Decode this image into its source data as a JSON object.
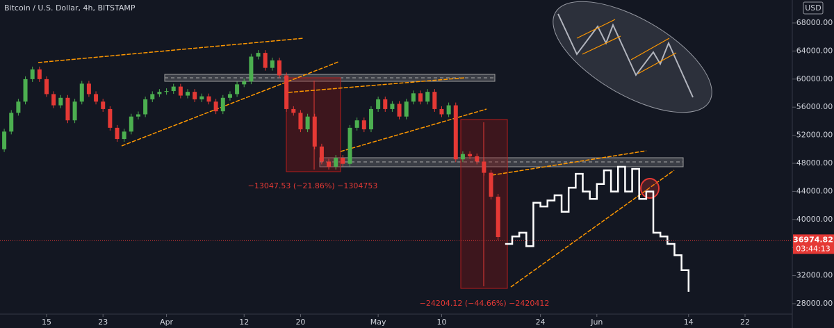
{
  "chart_data": {
    "type": "candlestick",
    "title": "Bitcoin / U.S. Dollar, 4h, BITSTAMP",
    "currency": "USD",
    "up_color": "#4caf50",
    "down_color": "#e53935",
    "x": [
      9,
      10,
      11,
      12,
      13,
      14,
      15,
      16,
      17,
      18,
      19,
      20,
      21,
      22,
      23,
      24,
      25,
      26,
      27,
      28,
      29,
      30,
      31,
      32,
      33,
      34,
      35,
      36,
      37,
      38,
      39,
      40,
      41,
      42,
      43,
      44,
      45,
      46,
      47,
      48,
      49,
      50,
      51,
      52,
      53,
      54,
      55,
      56,
      57,
      58,
      59,
      60,
      61,
      62,
      63,
      64,
      65,
      66,
      67,
      68,
      69,
      70,
      71,
      72,
      73,
      74,
      75,
      76,
      77,
      78,
      79
    ],
    "open": [
      50000,
      52520,
      55190,
      56790,
      59990,
      61380,
      59990,
      57860,
      56260,
      57330,
      54120,
      56790,
      59350,
      57860,
      56790,
      55730,
      53060,
      51460,
      52520,
      54660,
      54980,
      57110,
      57860,
      58180,
      58290,
      58930,
      57650,
      58180,
      57110,
      57540,
      56790,
      55410,
      57330,
      57860,
      59250,
      59670,
      63200,
      63730,
      61600,
      62660,
      60530,
      55730,
      55190,
      52840,
      54660,
      50390,
      48250,
      47510,
      48790,
      47930,
      53060,
      54120,
      52840,
      55730,
      57110,
      55730,
      56470,
      54660,
      56790,
      57970,
      56790,
      58180,
      55730,
      54980,
      56260,
      48570,
      49320,
      49000,
      48250,
      46650,
      43240
    ],
    "close": [
      52520,
      55190,
      56790,
      59990,
      61380,
      59990,
      57860,
      56260,
      57330,
      54120,
      56790,
      59350,
      57860,
      56790,
      55730,
      53060,
      51460,
      52520,
      54660,
      54980,
      57110,
      57860,
      58180,
      58290,
      58930,
      57650,
      58180,
      57110,
      57540,
      56790,
      55410,
      57330,
      57860,
      59250,
      59670,
      63200,
      63730,
      61600,
      62660,
      60530,
      55730,
      55190,
      52840,
      54660,
      50390,
      48250,
      47510,
      48790,
      47930,
      53060,
      54120,
      52840,
      55730,
      57110,
      55730,
      56470,
      54660,
      56790,
      57970,
      56790,
      58180,
      55730,
      54980,
      56260,
      48570,
      49320,
      49000,
      48250,
      46650,
      43240,
      37500
    ],
    "line": {
      "color": "#ffffff",
      "x": [
        80,
        81,
        82,
        83,
        84,
        85,
        86,
        87,
        88,
        89,
        90,
        91,
        92,
        93,
        94,
        95,
        96,
        97,
        98,
        99,
        100,
        101,
        102,
        103,
        104,
        105,
        106
      ],
      "values": [
        36510,
        37580,
        38110,
        36190,
        42380,
        41850,
        42700,
        43450,
        41100,
        44520,
        46500,
        43980,
        42920,
        45050,
        47000,
        43980,
        47500,
        43980,
        47200,
        42920,
        43980,
        38110,
        37580,
        36510,
        34910,
        32780,
        29700
      ]
    },
    "xlim": [
      8.4,
      120.7
    ],
    "xticks": [
      15,
      23,
      {
        "value": 32,
        "label": "Apr"
      },
      {
        "value": 43,
        "label": "12"
      },
      {
        "value": 51,
        "label": "20"
      },
      {
        "value": 62,
        "label": "May"
      },
      {
        "value": 71,
        "label": "10"
      },
      {
        "value": 85,
        "label": "24"
      },
      {
        "value": 93,
        "label": "Jun"
      },
      {
        "value": 106,
        "label": "14"
      },
      {
        "value": 114,
        "label": "22"
      }
    ],
    "ylim": [
      26515,
      71267
    ],
    "yticks": [
      {
        "value": 28000,
        "label": "28000.00"
      },
      {
        "value": 32000,
        "label": "32000.00"
      },
      {
        "value": 36000,
        "label": "36000.00"
      },
      {
        "value": 40000,
        "label": "40000.00"
      },
      {
        "value": 44000,
        "label": "44000.00"
      },
      {
        "value": 48000,
        "label": "48000.00"
      },
      {
        "value": 52000,
        "label": "52000.00"
      },
      {
        "value": 56000,
        "label": "56000.00"
      },
      {
        "value": 60000,
        "label": "60000.00"
      },
      {
        "value": 64000,
        "label": "64000.00"
      },
      {
        "value": 68000,
        "label": "68000.00"
      }
    ],
    "last_price": {
      "value": 36974.82,
      "label": "36974.82"
    },
    "countdown": "03:44:13",
    "annotations": [
      "−13047.53 (−21.86%) −1304753",
      "−24204.12 (−44.66%) −2420412"
    ]
  }
}
